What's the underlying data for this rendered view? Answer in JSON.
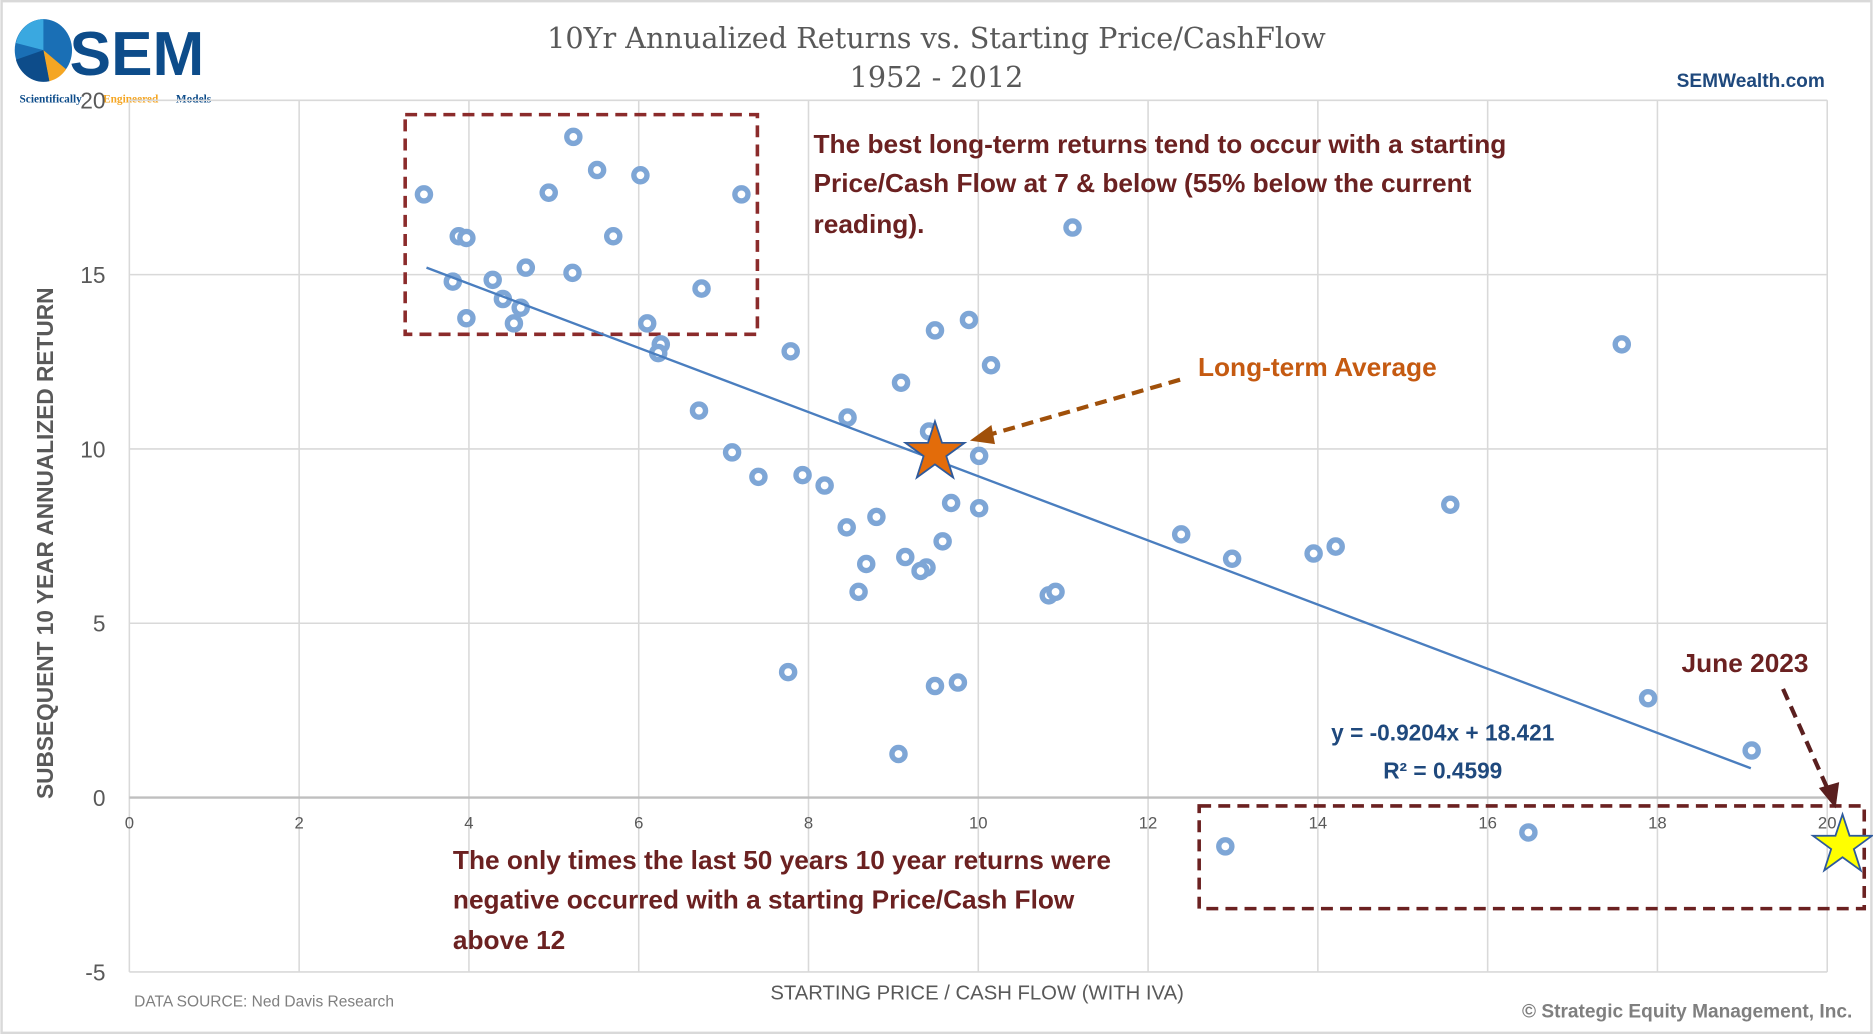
{
  "logo": {
    "text": "SEM",
    "tagline_1": "Scientifically",
    "tagline_2": "Engineered",
    "tagline_3": "Models"
  },
  "website": "SEMWealth.com",
  "data_source": "DATA SOURCE: Ned Davis Research",
  "copyright": "© Strategic Equity Management, Inc.",
  "colors": {
    "points": "#7ea6d6",
    "trendline": "#4a7ebf",
    "annotation": "#6b2121",
    "avg_star": "#e36c0a",
    "current_star": "#ffff00",
    "avg_arrow": "#a0500a",
    "equation": "#1f497d"
  },
  "chart_data": {
    "type": "scatter",
    "title": "10Yr Annualized Returns vs. Starting Price/CashFlow",
    "subtitle": "1952 - 2012",
    "xlabel": "STARTING PRICE / CASH FLOW (WITH IVA)",
    "ylabel": "SUBSEQUENT 10 YEAR ANNUALIZED RETURN",
    "xlim": [
      0,
      20
    ],
    "ylim": [
      -5,
      20
    ],
    "xticks": [
      "0",
      "2",
      "4",
      "6",
      "8",
      "10",
      "12",
      "14",
      "16",
      "18",
      "20"
    ],
    "yticks": [
      "-5",
      "0",
      "5",
      "10",
      "15",
      "20"
    ],
    "grid": true,
    "points": [
      [
        3.47,
        17.3
      ],
      [
        3.88,
        16.1
      ],
      [
        3.97,
        16.05
      ],
      [
        5.23,
        18.95
      ],
      [
        4.94,
        17.35
      ],
      [
        5.51,
        18.0
      ],
      [
        6.02,
        17.85
      ],
      [
        5.7,
        16.1
      ],
      [
        7.21,
        17.3
      ],
      [
        3.81,
        14.8
      ],
      [
        4.28,
        14.85
      ],
      [
        4.67,
        15.2
      ],
      [
        5.22,
        15.05
      ],
      [
        4.4,
        14.3
      ],
      [
        4.61,
        14.05
      ],
      [
        3.97,
        13.75
      ],
      [
        4.53,
        13.6
      ],
      [
        6.74,
        14.6
      ],
      [
        6.1,
        13.6
      ],
      [
        6.26,
        13.0
      ],
      [
        6.23,
        12.75
      ],
      [
        7.79,
        12.8
      ],
      [
        6.71,
        11.1
      ],
      [
        11.11,
        16.35
      ],
      [
        9.49,
        13.4
      ],
      [
        9.89,
        13.7
      ],
      [
        10.15,
        12.4
      ],
      [
        9.09,
        11.9
      ],
      [
        8.46,
        10.9
      ],
      [
        9.42,
        10.5
      ],
      [
        10.01,
        9.8
      ],
      [
        7.1,
        9.9
      ],
      [
        7.41,
        9.2
      ],
      [
        7.93,
        9.25
      ],
      [
        8.19,
        8.95
      ],
      [
        9.68,
        8.45
      ],
      [
        10.01,
        8.3
      ],
      [
        8.8,
        8.05
      ],
      [
        8.45,
        7.75
      ],
      [
        9.58,
        7.35
      ],
      [
        9.14,
        6.9
      ],
      [
        8.68,
        6.7
      ],
      [
        9.39,
        6.6
      ],
      [
        9.32,
        6.5
      ],
      [
        8.59,
        5.9
      ],
      [
        10.83,
        5.8
      ],
      [
        10.91,
        5.9
      ],
      [
        12.39,
        7.55
      ],
      [
        12.99,
        6.85
      ],
      [
        13.95,
        7.0
      ],
      [
        14.21,
        7.2
      ],
      [
        15.56,
        8.4
      ],
      [
        17.58,
        13.0
      ],
      [
        17.89,
        2.85
      ],
      [
        19.11,
        1.35
      ],
      [
        7.76,
        3.6
      ],
      [
        9.49,
        3.2
      ],
      [
        9.76,
        3.3
      ],
      [
        9.06,
        1.25
      ],
      [
        12.91,
        -1.4
      ],
      [
        16.48,
        -1.0
      ]
    ],
    "trendline": {
      "slope": -0.9204,
      "intercept": 18.421,
      "x_range": [
        3.5,
        19.1
      ],
      "equation": "y = -0.9204x + 18.421",
      "r2_label": "R² = 0.4599"
    },
    "highlights": {
      "long_term_average": {
        "x": 9.49,
        "y": 9.9,
        "label": "Long-term Average"
      },
      "current": {
        "x": 20.18,
        "y": -1.37,
        "label": "June 2023"
      }
    },
    "annotations": {
      "top_lines": [
        "The best long-term returns tend to occur with a starting",
        "Price/Cash Flow at 7 & below (55% below the current",
        "reading)."
      ],
      "bottom_lines": [
        "The only times the last 50 years 10 year returns were",
        "negative occurred with a starting Price/Cash Flow",
        "above 12"
      ]
    }
  }
}
